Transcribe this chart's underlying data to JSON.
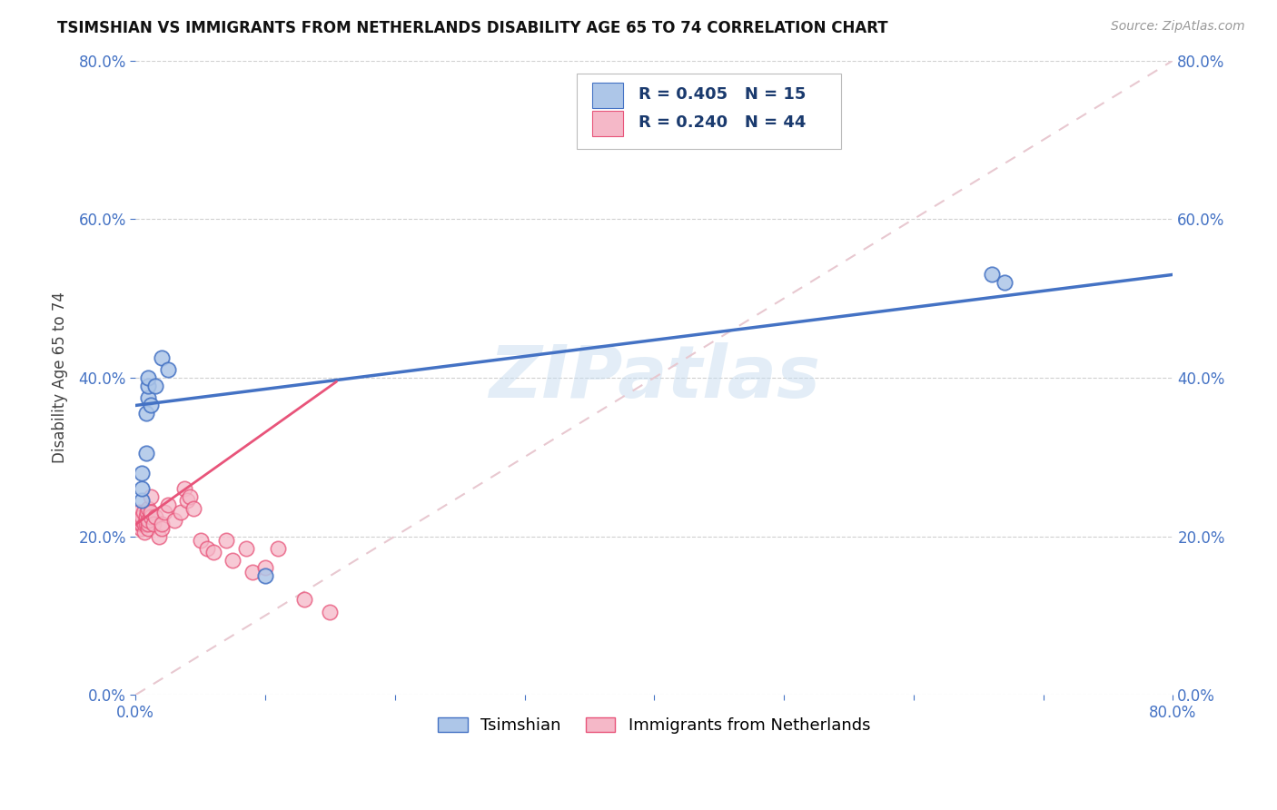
{
  "title": "TSIMSHIAN VS IMMIGRANTS FROM NETHERLANDS DISABILITY AGE 65 TO 74 CORRELATION CHART",
  "source": "Source: ZipAtlas.com",
  "ylabel": "Disability Age 65 to 74",
  "xmin": 0.0,
  "xmax": 0.8,
  "ymin": 0.0,
  "ymax": 0.8,
  "xticks": [
    0.0,
    0.1,
    0.2,
    0.3,
    0.4,
    0.5,
    0.6,
    0.7,
    0.8
  ],
  "yticks": [
    0.0,
    0.2,
    0.4,
    0.6,
    0.8
  ],
  "legend_label1": "Tsimshian",
  "legend_label2": "Immigrants from Netherlands",
  "R1": 0.405,
  "N1": 15,
  "R2": 0.24,
  "N2": 44,
  "color1": "#adc6e8",
  "color2": "#f5b8c8",
  "line_color1": "#4472c4",
  "line_color2": "#e8547a",
  "diagonal_color": "#e8c8d0",
  "watermark": "ZIPatlas",
  "tsimshian_x": [
    0.005,
    0.005,
    0.005,
    0.008,
    0.008,
    0.01,
    0.01,
    0.01,
    0.012,
    0.015,
    0.02,
    0.025,
    0.66,
    0.67,
    0.1
  ],
  "tsimshian_y": [
    0.245,
    0.26,
    0.28,
    0.305,
    0.355,
    0.375,
    0.39,
    0.4,
    0.365,
    0.39,
    0.425,
    0.41,
    0.53,
    0.52,
    0.15
  ],
  "netherlands_x": [
    0.003,
    0.003,
    0.004,
    0.004,
    0.005,
    0.005,
    0.005,
    0.006,
    0.007,
    0.007,
    0.008,
    0.008,
    0.009,
    0.01,
    0.01,
    0.01,
    0.01,
    0.012,
    0.012,
    0.012,
    0.014,
    0.015,
    0.018,
    0.02,
    0.02,
    0.022,
    0.025,
    0.03,
    0.035,
    0.038,
    0.04,
    0.042,
    0.045,
    0.05,
    0.055,
    0.06,
    0.07,
    0.075,
    0.085,
    0.09,
    0.1,
    0.11,
    0.13,
    0.15
  ],
  "netherlands_y": [
    0.22,
    0.23,
    0.21,
    0.215,
    0.215,
    0.22,
    0.225,
    0.23,
    0.205,
    0.215,
    0.215,
    0.225,
    0.23,
    0.21,
    0.215,
    0.22,
    0.235,
    0.225,
    0.23,
    0.25,
    0.215,
    0.225,
    0.2,
    0.21,
    0.215,
    0.23,
    0.24,
    0.22,
    0.23,
    0.26,
    0.245,
    0.25,
    0.235,
    0.195,
    0.185,
    0.18,
    0.195,
    0.17,
    0.185,
    0.155,
    0.16,
    0.185,
    0.12,
    0.105
  ],
  "blue_line_x0": 0.0,
  "blue_line_x1": 0.8,
  "blue_line_y0": 0.365,
  "blue_line_y1": 0.53,
  "pink_line_x0": 0.0,
  "pink_line_x1": 0.155,
  "pink_line_y0": 0.215,
  "pink_line_y1": 0.395
}
